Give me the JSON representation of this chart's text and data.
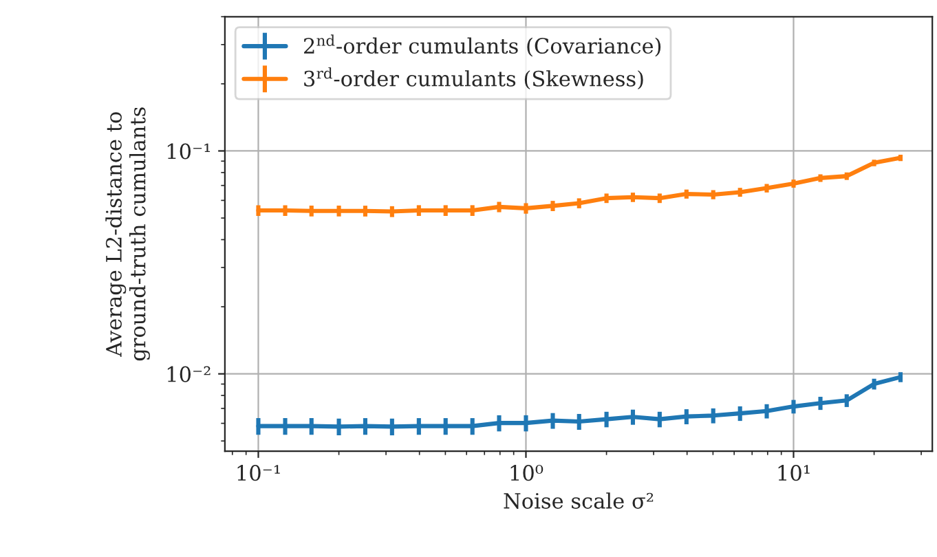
{
  "chart_data": {
    "type": "line",
    "xlabel": "Noise scale σ²",
    "ylabel": "Average L2-distance to\nground-truth cumulants",
    "x": [
      0.1,
      0.126,
      0.158,
      0.2,
      0.251,
      0.316,
      0.398,
      0.501,
      0.631,
      0.794,
      1,
      1.26,
      1.58,
      2,
      2.51,
      3.16,
      3.98,
      5.01,
      6.31,
      7.94,
      10,
      12.6,
      15.8,
      20,
      25.1
    ],
    "series": [
      {
        "name": "2$^{nd}$-order cumulants (Covariance)",
        "color": "#1f77b4",
        "values": [
          0.00583,
          0.00583,
          0.00583,
          0.0058,
          0.00583,
          0.0058,
          0.00583,
          0.00583,
          0.00583,
          0.00602,
          0.00602,
          0.00617,
          0.00611,
          0.00626,
          0.00641,
          0.00626,
          0.00644,
          0.0065,
          0.00665,
          0.00681,
          0.00714,
          0.00739,
          0.0076,
          0.00901,
          0.00967
        ],
        "errors": [
          0.0005,
          0.0005,
          0.0005,
          0.0005,
          0.0005,
          0.0005,
          0.0005,
          0.0005,
          0.0005,
          0.0005,
          0.0005,
          0.0005,
          0.0005,
          0.0005,
          0.0005,
          0.0005,
          0.0005,
          0.0005,
          0.0005,
          0.0005,
          0.0005,
          0.0005,
          0.0005,
          0.0005,
          0.0005
        ]
      },
      {
        "name": "3$^{rd}$-order cumulants (Skewness)",
        "color": "#ff7f0e",
        "values": [
          0.0541,
          0.0541,
          0.0538,
          0.0538,
          0.0538,
          0.0535,
          0.0541,
          0.0541,
          0.0541,
          0.0561,
          0.0553,
          0.0567,
          0.0583,
          0.0614,
          0.062,
          0.0614,
          0.0641,
          0.0637,
          0.0653,
          0.0681,
          0.0714,
          0.0756,
          0.0771,
          0.0884,
          0.0931
        ],
        "errors": [
          0.003,
          0.003,
          0.003,
          0.003,
          0.003,
          0.003,
          0.003,
          0.003,
          0.003,
          0.003,
          0.003,
          0.003,
          0.003,
          0.003,
          0.003,
          0.003,
          0.003,
          0.003,
          0.003,
          0.003,
          0.003,
          0.003,
          0.003,
          0.003,
          0.003
        ]
      }
    ],
    "log": "xy",
    "xlim": [
      0.075,
      33
    ],
    "xticks": [
      {
        "value": 0.1,
        "label": "10⁻¹"
      },
      {
        "value": 1,
        "label": "10⁰"
      },
      {
        "value": 10,
        "label": "10¹"
      }
    ],
    "ylim": [
      0.0045,
      0.4
    ],
    "yticks": [
      {
        "value": 0.01,
        "label": "10⁻²"
      },
      {
        "value": 0.1,
        "label": "10⁻¹"
      }
    ],
    "grid": true,
    "legend": "top left",
    "marker": "none",
    "line_style": "solid"
  }
}
